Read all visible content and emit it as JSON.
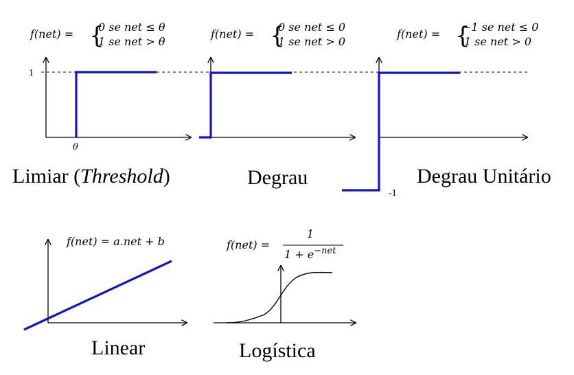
{
  "colors": {
    "activation_line": "#1010d8",
    "axis": "#000000"
  },
  "panels": [
    {
      "id": "threshold",
      "label_main": "Limiar (",
      "label_italic": "Threshold",
      "label_end": ")",
      "formula_lhs": "f(net) =",
      "case1": "0 se net ≤ θ",
      "case2": "1 se net  > θ",
      "y_tick": "1",
      "x_tick": "θ"
    },
    {
      "id": "step",
      "label": "Degrau",
      "formula_lhs": "f(net) =",
      "case1": "0 se net ≤ 0",
      "case2": "1 se net  > 0"
    },
    {
      "id": "unit-step",
      "label": "Degrau Unitário",
      "formula_lhs": "f(net) =",
      "case1": "−1 se net ≤ 0",
      "case2": "1 se net  > 0",
      "y_tick_neg": "-1"
    },
    {
      "id": "linear",
      "label": "Linear",
      "formula": "f(net) = a.net + b"
    },
    {
      "id": "logistic",
      "label": "Logística",
      "formula_lhs": "f(net) =",
      "numerator": "1",
      "denominator": "1 + e",
      "exponent": "−net"
    }
  ]
}
